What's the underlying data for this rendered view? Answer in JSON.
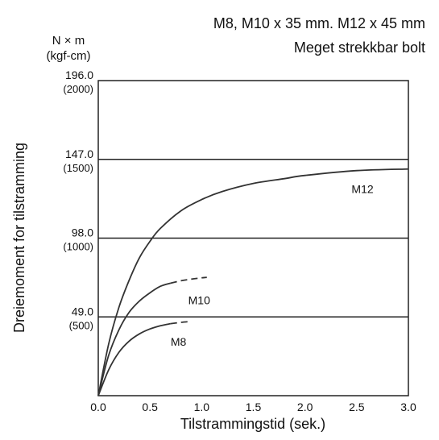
{
  "chart_data": {
    "type": "line",
    "title": "M8, M10 x 35 mm. M12 x 45 mm",
    "subtitle": "Meget strekkbar bolt",
    "ylabel_unit": "N × m",
    "ylabel_unit_alt": "(kgf-cm)",
    "ylabel": "Dreiemoment for tilstramming",
    "xlabel": "Tilstrammingstid (sek.)",
    "xlim": [
      0,
      3.0
    ],
    "ylim": [
      0,
      196.0
    ],
    "x_ticks": [
      "0.0",
      "0.5",
      "1.0",
      "1.5",
      "2.0",
      "2.5",
      "3.0"
    ],
    "y_ticks": [
      {
        "value": 49.0,
        "label": "49.0",
        "sublabel": "(500)"
      },
      {
        "value": 98.0,
        "label": "98.0",
        "sublabel": "(1000)"
      },
      {
        "value": 147.0,
        "label": "147.0",
        "sublabel": "(1500)"
      },
      {
        "value": 196.0,
        "label": "196.0",
        "sublabel": "(2000)"
      }
    ],
    "grid": "horizontal",
    "series": [
      {
        "name": "M12",
        "x": [
          0,
          0.1,
          0.2,
          0.3,
          0.4,
          0.5,
          0.6,
          0.8,
          1.0,
          1.2,
          1.5,
          1.8,
          2.0,
          2.5,
          3.0
        ],
        "y": [
          0,
          32,
          55,
          72,
          86,
          96,
          104,
          115,
          122,
          127,
          132,
          135,
          137,
          140,
          141
        ],
        "dashed_x": [],
        "dashed_y": []
      },
      {
        "name": "M10",
        "x": [
          0,
          0.1,
          0.2,
          0.3,
          0.4,
          0.5,
          0.6,
          0.7
        ],
        "y": [
          0,
          25,
          41,
          52,
          59,
          64,
          68,
          70
        ],
        "dashed_x": [
          0.7,
          0.8,
          0.9,
          1.0,
          1.05
        ],
        "dashed_y": [
          70,
          71.5,
          72.5,
          73.3,
          73.6
        ]
      },
      {
        "name": "M8",
        "x": [
          0,
          0.1,
          0.2,
          0.3,
          0.4,
          0.5,
          0.6,
          0.7
        ],
        "y": [
          0,
          16,
          27,
          34,
          38.5,
          41.5,
          43.5,
          44.8
        ],
        "dashed_x": [
          0.7,
          0.8,
          0.9
        ],
        "dashed_y": [
          44.8,
          45.6,
          46.2
        ]
      }
    ]
  }
}
